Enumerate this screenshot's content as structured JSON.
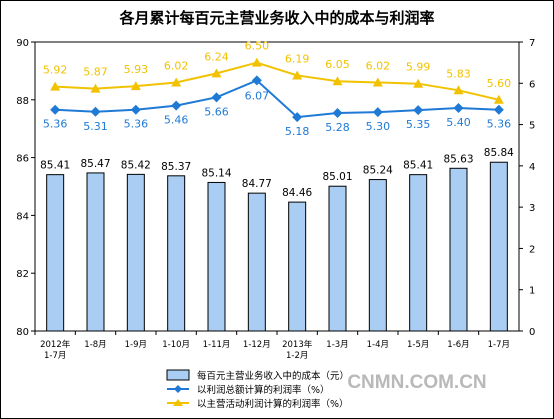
{
  "chart_data": {
    "type": "bar",
    "title": "各月累计每百元主营业务收入中的成本与利润率",
    "categories": [
      [
        "2012年",
        "1-7月"
      ],
      [
        "1-8月"
      ],
      [
        "1-9月"
      ],
      [
        "1-10月"
      ],
      [
        "1-11月"
      ],
      [
        "1-12月"
      ],
      [
        "2013年",
        "1-2月"
      ],
      [
        "1-3月"
      ],
      [
        "1-4月"
      ],
      [
        "1-5月"
      ],
      [
        "1-6月"
      ],
      [
        "1-7月"
      ]
    ],
    "left_axis": {
      "ylim": [
        80,
        90
      ],
      "ticks": [
        "80",
        "82",
        "84",
        "86",
        "88",
        "90"
      ]
    },
    "right_axis": {
      "ylim": [
        0,
        7
      ],
      "ticks": [
        "0",
        "1",
        "2",
        "3",
        "4",
        "5",
        "6",
        "7"
      ]
    },
    "series": [
      {
        "name": "每百元主营业务收入中的成本（元）",
        "type": "bar",
        "axis": "left",
        "color": "#a9cdf3",
        "values": [
          85.41,
          85.47,
          85.42,
          85.37,
          85.14,
          84.77,
          84.46,
          85.01,
          85.24,
          85.41,
          85.63,
          85.84
        ],
        "labels": [
          "85.41",
          "85.47",
          "85.42",
          "85.37",
          "85.14",
          "84.77",
          "84.46",
          "85.01",
          "85.24",
          "85.41",
          "85.63",
          "85.84"
        ]
      },
      {
        "name": "以利润总额计算的利润率（%）",
        "type": "line",
        "axis": "right",
        "color": "#1f7ad6",
        "marker": "diamond",
        "values": [
          5.36,
          5.31,
          5.36,
          5.46,
          5.66,
          6.07,
          5.18,
          5.28,
          5.3,
          5.35,
          5.4,
          5.36
        ],
        "labels": [
          "5.36",
          "5.31",
          "5.36",
          "5.46",
          "5.66",
          "6.07",
          "5.18",
          "5.28",
          "5.30",
          "5.35",
          "5.40",
          "5.36"
        ]
      },
      {
        "name": "以主营活动利润计算的利润率（%）",
        "type": "line",
        "axis": "right",
        "color": "#f2c200",
        "marker": "triangle",
        "values": [
          5.92,
          5.87,
          5.93,
          6.02,
          6.24,
          6.5,
          6.19,
          6.05,
          6.02,
          5.99,
          5.83,
          5.6
        ],
        "labels": [
          "5.92",
          "5.87",
          "5.93",
          "6.02",
          "6.24",
          "6.50",
          "6.19",
          "6.05",
          "6.02",
          "5.99",
          "5.83",
          "5.60"
        ]
      }
    ],
    "legend": {
      "placement": "bottom-center"
    },
    "grid": false
  },
  "watermark": "CNMN.COM.CN"
}
